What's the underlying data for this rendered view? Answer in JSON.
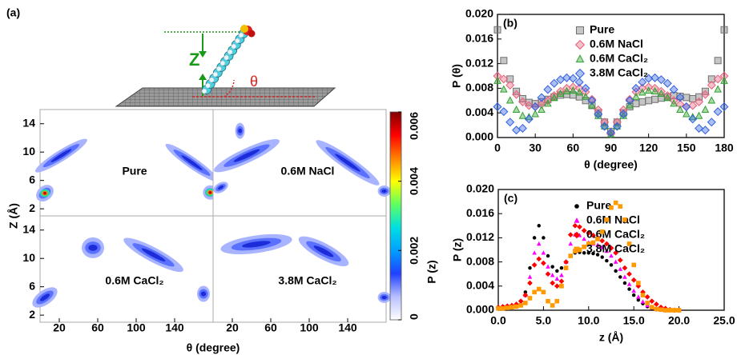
{
  "chart_data": [
    {
      "type": "contour",
      "label": "(a)",
      "xlabel": "θ (degree)",
      "ylabel": "Z (Å)",
      "schematic": {
        "z_label": "Z",
        "theta_label": "θ"
      },
      "panels": [
        "Pure",
        "0.6M NaCl",
        "0.6M CaCl₂",
        "3.8M CaCl₂"
      ],
      "xlim": [
        0,
        180
      ],
      "xticks": [
        20,
        60,
        100,
        140
      ],
      "ylim": [
        1,
        16
      ],
      "yticks": [
        2,
        6,
        10,
        14
      ],
      "colorbar": {
        "label": "P (z)",
        "lim": [
          0,
          0.006
        ],
        "ticks": [
          0,
          0.002,
          0.004,
          0.006
        ],
        "colormap": [
          "#ffffff",
          "#b8c0ff",
          "#2040ff",
          "#00a0ff",
          "#00e0e0",
          "#60ff60",
          "#ffff00",
          "#ff8000",
          "#ff0000",
          "#800000"
        ]
      }
    },
    {
      "type": "scatter",
      "label": "(b)",
      "xlabel": "θ (degree)",
      "ylabel": "P (θ)",
      "marker_fill": "open",
      "x": [
        0,
        5,
        10,
        15,
        20,
        25,
        30,
        35,
        40,
        45,
        50,
        55,
        60,
        65,
        70,
        75,
        80,
        85,
        90,
        95,
        100,
        105,
        110,
        115,
        120,
        125,
        130,
        135,
        140,
        145,
        150,
        155,
        160,
        165,
        170,
        175,
        180
      ],
      "xlim": [
        0,
        180
      ],
      "xticks": [
        0,
        30,
        60,
        90,
        120,
        150,
        180
      ],
      "ylim": [
        0,
        0.02
      ],
      "yticks": [
        {
          "value": 0,
          "label": "0.000"
        },
        {
          "value": 0.004,
          "label": "0.004"
        },
        {
          "value": 0.008,
          "label": "0.008"
        },
        {
          "value": 0.012,
          "label": "0.012"
        },
        {
          "value": 0.016,
          "label": "0.016"
        },
        {
          "value": 0.02,
          "label": "0.020"
        }
      ],
      "series": [
        {
          "name": "Pure",
          "color": "#707070",
          "marker": "square",
          "values": [
            0.0175,
            0.0125,
            0.0095,
            0.0075,
            0.0063,
            0.0057,
            0.0055,
            0.0058,
            0.0062,
            0.0066,
            0.0069,
            0.007,
            0.0069,
            0.0066,
            0.006,
            0.0052,
            0.004,
            0.0025,
            0.001,
            0.0025,
            0.004,
            0.005,
            0.0055,
            0.0058,
            0.006,
            0.0062,
            0.0064,
            0.0066,
            0.0068,
            0.0067,
            0.0065,
            0.0063,
            0.0066,
            0.0075,
            0.0095,
            0.0125,
            0.0175
          ]
        },
        {
          "name": "0.6M NaCl",
          "color": "#e8607a",
          "marker": "diamond",
          "values": [
            0.01,
            0.0095,
            0.0085,
            0.007,
            0.0058,
            0.0052,
            0.005,
            0.0054,
            0.006,
            0.0068,
            0.0075,
            0.008,
            0.0082,
            0.008,
            0.0074,
            0.0062,
            0.0045,
            0.0025,
            0.0006,
            0.0025,
            0.0045,
            0.0062,
            0.0074,
            0.008,
            0.0082,
            0.008,
            0.0075,
            0.0068,
            0.006,
            0.0054,
            0.005,
            0.0052,
            0.0058,
            0.007,
            0.0085,
            0.0095,
            0.01
          ]
        },
        {
          "name": "0.6M CaCl₂",
          "color": "#30a030",
          "marker": "triangle",
          "values": [
            0.0092,
            0.0078,
            0.006,
            0.0045,
            0.0035,
            0.0033,
            0.0038,
            0.0045,
            0.0055,
            0.0064,
            0.0071,
            0.0075,
            0.0076,
            0.0073,
            0.0066,
            0.0052,
            0.0035,
            0.0018,
            0.0005,
            0.0018,
            0.0035,
            0.0052,
            0.0066,
            0.0073,
            0.0076,
            0.0075,
            0.0071,
            0.0064,
            0.0055,
            0.0045,
            0.0038,
            0.0033,
            0.0035,
            0.0045,
            0.006,
            0.0078,
            0.0092
          ]
        },
        {
          "name": "3.8M CaCl₂",
          "color": "#3060e0",
          "marker": "diamond",
          "values": [
            0.005,
            0.0042,
            0.0025,
            0.0012,
            0.0015,
            0.003,
            0.005,
            0.0065,
            0.0078,
            0.0088,
            0.0094,
            0.0097,
            0.0096,
            0.009,
            0.008,
            0.006,
            0.0038,
            0.0018,
            0.0008,
            0.0018,
            0.0038,
            0.006,
            0.008,
            0.009,
            0.0096,
            0.0097,
            0.0094,
            0.0088,
            0.0078,
            0.0065,
            0.005,
            0.003,
            0.0015,
            0.0012,
            0.0025,
            0.0042,
            0.005
          ]
        }
      ]
    },
    {
      "type": "scatter",
      "label": "(c)",
      "xlabel": "z (Å)",
      "ylabel": "P (z)",
      "marker_fill": "solid",
      "x": [
        0,
        0.5,
        1,
        1.5,
        2,
        2.5,
        3,
        3.5,
        4,
        4.5,
        5,
        5.5,
        6,
        6.5,
        7,
        7.5,
        8,
        8.5,
        9,
        9.5,
        10,
        10.5,
        11,
        11.5,
        12,
        12.5,
        13,
        13.5,
        14,
        14.5,
        15,
        15.5,
        16,
        16.5,
        17,
        17.5,
        18,
        18.5,
        19,
        19.5,
        20
      ],
      "xlim": [
        0,
        25
      ],
      "xticks": [
        {
          "value": 0,
          "label": "0.0"
        },
        {
          "value": 5,
          "label": "5.0"
        },
        {
          "value": 10,
          "label": "10.0"
        },
        {
          "value": 15,
          "label": "15.0"
        },
        {
          "value": 20,
          "label": "20.0"
        },
        {
          "value": 25,
          "label": "25.0"
        }
      ],
      "ylim": [
        0,
        0.02
      ],
      "yticks": [
        {
          "value": 0,
          "label": "0.000"
        },
        {
          "value": 0.004,
          "label": "0.004"
        },
        {
          "value": 0.008,
          "label": "0.008"
        },
        {
          "value": 0.012,
          "label": "0.012"
        },
        {
          "value": 0.016,
          "label": "0.016"
        },
        {
          "value": 0.02,
          "label": "0.020"
        }
      ],
      "series": [
        {
          "name": "Pure",
          "color": "#000000",
          "marker": "circle",
          "values": [
            0.0003,
            0.0004,
            0.0005,
            0.0006,
            0.0008,
            0.0015,
            0.003,
            0.007,
            0.012,
            0.014,
            0.012,
            0.009,
            0.0072,
            0.0065,
            0.007,
            0.008,
            0.009,
            0.0095,
            0.0096,
            0.0095,
            0.0095,
            0.0094,
            0.0092,
            0.0088,
            0.0082,
            0.0075,
            0.0065,
            0.0055,
            0.0045,
            0.0035,
            0.0025,
            0.0017,
            0.0011,
            0.0006,
            0.0003,
            0.0001,
            0.0001,
            0,
            0,
            0,
            0
          ]
        },
        {
          "name": "0.6M NaCl",
          "color": "#ff00ff",
          "marker": "triangle",
          "values": [
            0.0003,
            0.0004,
            0.0005,
            0.0006,
            0.0008,
            0.0012,
            0.0025,
            0.0055,
            0.0095,
            0.011,
            0.0095,
            0.0072,
            0.0058,
            0.0052,
            0.0058,
            0.008,
            0.011,
            0.0125,
            0.0124,
            0.0118,
            0.0112,
            0.011,
            0.0108,
            0.0104,
            0.0098,
            0.009,
            0.008,
            0.0068,
            0.0055,
            0.0043,
            0.0032,
            0.0022,
            0.0014,
            0.0008,
            0.0004,
            0.0002,
            0.0001,
            0,
            0,
            0,
            0
          ]
        },
        {
          "name": "0.6M CaCl₂",
          "color": "#ff0000",
          "marker": "diamond",
          "values": [
            0.0005,
            0.0006,
            0.0007,
            0.0008,
            0.001,
            0.0015,
            0.0025,
            0.0045,
            0.0075,
            0.0085,
            0.0078,
            0.006,
            0.0045,
            0.004,
            0.0048,
            0.008,
            0.0125,
            0.014,
            0.0138,
            0.0132,
            0.0128,
            0.0124,
            0.012,
            0.0115,
            0.011,
            0.0103,
            0.0095,
            0.0083,
            0.007,
            0.006,
            0.005,
            0.004,
            0.003,
            0.0022,
            0.0015,
            0.001,
            0.0005,
            0.0003,
            0.0001,
            0,
            0
          ]
        },
        {
          "name": "3.8M CaCl₂",
          "color": "#ff9900",
          "marker": "square",
          "values": [
            0.0003,
            0.0003,
            0.0004,
            0.0005,
            0.0006,
            0.0008,
            0.0012,
            0.002,
            0.003,
            0.0035,
            0.003,
            0.0015,
            0.0008,
            0.0015,
            0.004,
            0.007,
            0.009,
            0.0098,
            0.01,
            0.0105,
            0.011,
            0.0112,
            0.0118,
            0.013,
            0.015,
            0.017,
            0.0178,
            0.0172,
            0.015,
            0.011,
            0.0075,
            0.0045,
            0.0025,
            0.0012,
            0.0005,
            0.0002,
            0.0001,
            0,
            0,
            0,
            0
          ]
        }
      ]
    }
  ]
}
